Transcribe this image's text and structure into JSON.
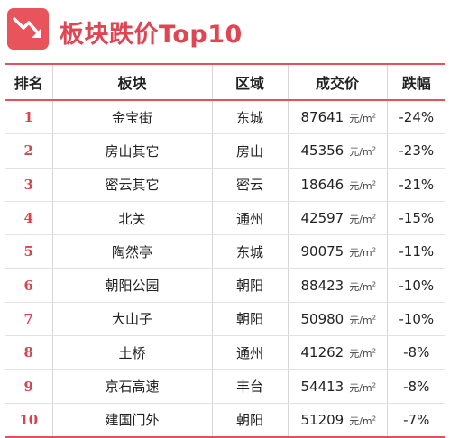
{
  "title": "板块跌价Top10",
  "icon": "trend-down-icon",
  "accent_color": "#e04552",
  "table": {
    "headers": [
      "排名",
      "板块",
      "区域",
      "成交价",
      "跌幅"
    ],
    "unit_prefix": "元/m",
    "unit_sup": "2",
    "rows": [
      {
        "rank": "1",
        "block": "金宝街",
        "district": "东城",
        "price": "87641",
        "drop": "-24%"
      },
      {
        "rank": "2",
        "block": "房山其它",
        "district": "房山",
        "price": "45356",
        "drop": "-23%"
      },
      {
        "rank": "3",
        "block": "密云其它",
        "district": "密云",
        "price": "18646",
        "drop": "-21%"
      },
      {
        "rank": "4",
        "block": "北关",
        "district": "通州",
        "price": "42597",
        "drop": "-15%"
      },
      {
        "rank": "5",
        "block": "陶然亭",
        "district": "东城",
        "price": "90075",
        "drop": "-11%"
      },
      {
        "rank": "6",
        "block": "朝阳公园",
        "district": "朝阳",
        "price": "88423",
        "drop": "-10%"
      },
      {
        "rank": "7",
        "block": "大山子",
        "district": "朝阳",
        "price": "50980",
        "drop": "-10%"
      },
      {
        "rank": "8",
        "block": "土桥",
        "district": "通州",
        "price": "41262",
        "drop": "-8%"
      },
      {
        "rank": "9",
        "block": "京石高速",
        "district": "丰台",
        "price": "54413",
        "drop": "-8%"
      },
      {
        "rank": "10",
        "block": "建国门外",
        "district": "朝阳",
        "price": "51209",
        "drop": "-7%"
      }
    ]
  }
}
